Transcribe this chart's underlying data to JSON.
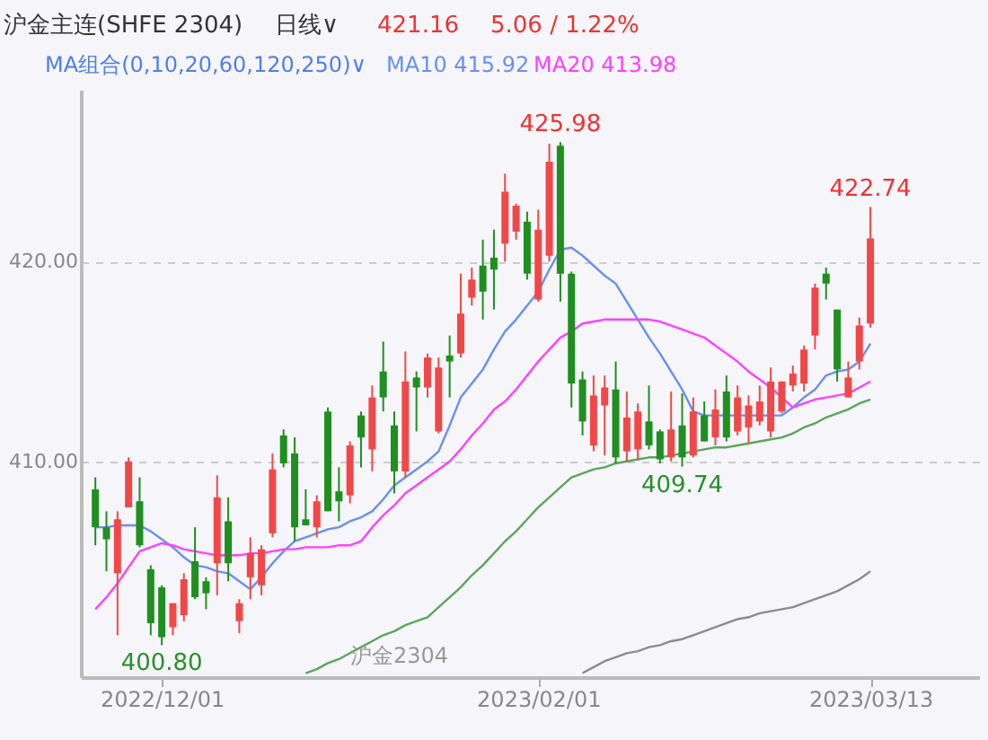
{
  "chart_data": {
    "type": "candlestick",
    "title": "沪金主连(SHFE 2304)",
    "subtitle": "日线∨",
    "categories": [
      null,
      null,
      null,
      null,
      null,
      null,
      "2022/12/01",
      null,
      null,
      null,
      null,
      null,
      null,
      null,
      null,
      null,
      null,
      null,
      null,
      null,
      null,
      null,
      null,
      null,
      null,
      null,
      null,
      null,
      null,
      null,
      null,
      null,
      null,
      null,
      null,
      null,
      null,
      null,
      null,
      null,
      "2023/02/01",
      null,
      null,
      null,
      null,
      null,
      null,
      null,
      null,
      null,
      null,
      null,
      null,
      null,
      null,
      null,
      null,
      null,
      null,
      null,
      null,
      null,
      null,
      null,
      null,
      null,
      null,
      null,
      null,
      null,
      "2023/03/13"
    ],
    "ohlc": [
      [
        408.6,
        409.2,
        405.8,
        406.7
      ],
      [
        406.7,
        407.5,
        404.5,
        406.1
      ],
      [
        404.4,
        407.5,
        401.3,
        407.1
      ],
      [
        407.7,
        410.2,
        407.7,
        410.0
      ],
      [
        408.0,
        409.2,
        405.7,
        405.8
      ],
      [
        404.6,
        404.8,
        401.3,
        401.9
      ],
      [
        403.7,
        403.8,
        400.8,
        401.2
      ],
      [
        401.7,
        402.9,
        401.3,
        402.9
      ],
      [
        402.3,
        404.4,
        402.0,
        404.1
      ],
      [
        405.0,
        406.7,
        403.1,
        403.2
      ],
      [
        404.0,
        404.2,
        402.6,
        403.4
      ],
      [
        404.9,
        409.3,
        403.3,
        408.2
      ],
      [
        407.0,
        408.2,
        404.0,
        404.9
      ],
      [
        402.0,
        403.1,
        401.4,
        402.9
      ],
      [
        404.2,
        406.2,
        403.1,
        405.4
      ],
      [
        403.8,
        405.8,
        403.3,
        405.6
      ],
      [
        406.4,
        410.4,
        406.2,
        409.6
      ],
      [
        411.3,
        411.6,
        409.7,
        409.9
      ],
      [
        410.4,
        411.2,
        406.0,
        406.7
      ],
      [
        407.1,
        408.6,
        406.8,
        406.8
      ],
      [
        406.7,
        408.3,
        406.2,
        408.0
      ],
      [
        412.5,
        412.7,
        407.5,
        407.5
      ],
      [
        408.5,
        409.7,
        407.0,
        408.0
      ],
      [
        408.3,
        411.0,
        407.9,
        410.8
      ],
      [
        412.3,
        412.5,
        409.7,
        411.2
      ],
      [
        410.6,
        413.8,
        409.5,
        413.2
      ],
      [
        414.5,
        416.0,
        412.5,
        413.2
      ],
      [
        411.8,
        412.5,
        408.4,
        409.5
      ],
      [
        409.5,
        415.5,
        409.2,
        414.0
      ],
      [
        414.2,
        414.5,
        411.5,
        413.7
      ],
      [
        413.7,
        415.4,
        413.2,
        415.2
      ],
      [
        411.5,
        415.2,
        411.4,
        414.7
      ],
      [
        415.3,
        416.3,
        413.2,
        415.0
      ],
      [
        415.4,
        419.4,
        415.2,
        417.4
      ],
      [
        418.2,
        419.7,
        417.8,
        419.1
      ],
      [
        419.8,
        421.1,
        417.1,
        418.5
      ],
      [
        420.2,
        421.6,
        417.6,
        419.6
      ],
      [
        420.9,
        424.4,
        420.0,
        423.5
      ],
      [
        421.5,
        422.9,
        421.1,
        422.8
      ],
      [
        422.0,
        422.5,
        419.1,
        419.4
      ],
      [
        418.1,
        422.6,
        418.0,
        421.6
      ],
      [
        420.3,
        425.9,
        420.0,
        425.0
      ],
      [
        425.8,
        425.98,
        418.0,
        419.4
      ],
      [
        419.4,
        419.5,
        412.7,
        413.9
      ],
      [
        414.1,
        414.5,
        411.3,
        412.0
      ],
      [
        410.8,
        414.3,
        410.5,
        413.3
      ],
      [
        412.8,
        414.3,
        410.3,
        413.7
      ],
      [
        413.6,
        415.0,
        409.9,
        410.2
      ],
      [
        410.5,
        413.5,
        410.0,
        412.2
      ],
      [
        410.6,
        412.9,
        410.1,
        412.5
      ],
      [
        412.0,
        413.8,
        410.6,
        410.8
      ],
      [
        411.5,
        411.6,
        409.9,
        410.1
      ],
      [
        410.2,
        413.5,
        410.0,
        411.6
      ],
      [
        411.8,
        413.4,
        409.74,
        410.2
      ],
      [
        410.3,
        413.2,
        410.2,
        412.5
      ],
      [
        412.3,
        413.0,
        411.0,
        411.0
      ],
      [
        411.2,
        413.6,
        410.8,
        412.6
      ],
      [
        413.5,
        414.3,
        411.0,
        411.2
      ],
      [
        411.5,
        413.8,
        411.3,
        413.2
      ],
      [
        411.7,
        413.3,
        410.9,
        412.8
      ],
      [
        412.0,
        413.8,
        411.8,
        413.0
      ],
      [
        411.5,
        414.7,
        411.2,
        414.0
      ],
      [
        412.5,
        414.0,
        412.4,
        414.0
      ],
      [
        413.8,
        414.8,
        413.5,
        414.4
      ],
      [
        413.9,
        415.8,
        413.5,
        415.6
      ],
      [
        416.3,
        418.9,
        415.6,
        418.7
      ],
      [
        419.4,
        419.7,
        418.1,
        418.9
      ],
      [
        417.6,
        417.6,
        414.0,
        414.6
      ],
      [
        413.2,
        415.0,
        413.2,
        414.2
      ],
      [
        415.0,
        417.2,
        414.6,
        416.8
      ],
      [
        416.9,
        422.74,
        416.7,
        421.16
      ]
    ],
    "colors": [
      "#1f8f1f",
      "#1f8f1f",
      "#f04848",
      "#f04848",
      "#1f8f1f",
      "#1f8f1f",
      "#1f8f1f",
      "#f04848",
      "#f04848",
      "#1f8f1f",
      "#1f8f1f",
      "#f04848",
      "#1f8f1f",
      "#f04848",
      "#f04848",
      "#f04848",
      "#f04848",
      "#1f8f1f",
      "#1f8f1f",
      "#1f8f1f",
      "#f04848",
      "#1f8f1f",
      "#1f8f1f",
      "#f04848",
      "#1f8f1f",
      "#f04848",
      "#1f8f1f",
      "#1f8f1f",
      "#f04848",
      "#1f8f1f",
      "#f04848",
      "#f04848",
      "#1f8f1f",
      "#f04848",
      "#f04848",
      "#1f8f1f",
      "#1f8f1f",
      "#f04848",
      "#f04848",
      "#1f8f1f",
      "#f04848",
      "#f04848",
      "#1f8f1f",
      "#1f8f1f",
      "#1f8f1f",
      "#f04848",
      "#f04848",
      "#1f8f1f",
      "#f04848",
      "#f04848",
      "#1f8f1f",
      "#1f8f1f",
      "#f04848",
      "#1f8f1f",
      "#f04848",
      "#1f8f1f",
      "#f04848",
      "#1f8f1f",
      "#f04848",
      "#f04848",
      "#f04848",
      "#f04848",
      "#f04848",
      "#f04848",
      "#f04848",
      "#f04848",
      "#1f8f1f",
      "#1f8f1f",
      "#f04848",
      "#f04848",
      "#f04848"
    ],
    "series": [
      {
        "type": "line",
        "name": "MA10 415.92",
        "color": "#6a8ff0",
        "values": [
          406.7,
          406.7,
          406.8,
          406.8,
          406.8,
          406.5,
          406.1,
          405.7,
          405.2,
          404.8,
          404.7,
          404.5,
          404.4,
          404.0,
          403.6,
          404.2,
          404.9,
          405.5,
          406.0,
          406.2,
          406.4,
          406.6,
          406.7,
          407.0,
          407.2,
          407.5,
          408.1,
          408.8,
          409.2,
          409.6,
          410.0,
          410.5,
          411.8,
          413.2,
          413.9,
          414.6,
          415.6,
          416.5,
          417.1,
          417.8,
          418.5,
          419.6,
          420.6,
          420.7,
          420.3,
          419.8,
          419.3,
          418.9,
          418.0,
          417.1,
          416.2,
          415.4,
          414.5,
          413.6,
          412.5,
          412.3,
          412.3,
          412.3,
          412.3,
          412.3,
          412.3,
          412.3,
          412.3,
          412.7,
          413.2,
          413.6,
          414.3,
          414.5,
          414.6,
          415.0,
          415.9
        ]
      },
      {
        "type": "line",
        "name": "MA20 413.98",
        "color": "#ff40ff",
        "values": [
          402.6,
          403.2,
          403.9,
          404.7,
          405.5,
          405.7,
          405.9,
          405.8,
          405.6,
          405.5,
          405.4,
          405.3,
          405.3,
          405.3,
          405.4,
          405.4,
          405.5,
          405.6,
          405.6,
          405.7,
          405.7,
          405.7,
          405.8,
          405.8,
          406.0,
          406.7,
          407.3,
          407.8,
          408.4,
          408.8,
          409.2,
          409.6,
          410.0,
          410.6,
          411.3,
          411.9,
          412.6,
          413.0,
          413.6,
          414.3,
          415.0,
          415.6,
          416.2,
          416.5,
          416.9,
          417.0,
          417.1,
          417.1,
          417.1,
          417.1,
          417.1,
          417.0,
          416.8,
          416.6,
          416.4,
          416.2,
          415.8,
          415.4,
          415.0,
          414.5,
          414.1,
          413.7,
          413.2,
          412.7,
          412.9,
          413.1,
          413.2,
          413.3,
          413.4,
          413.7,
          414.0
        ]
      },
      {
        "type": "line",
        "color": "#5aa65a",
        "values": [
          null,
          null,
          null,
          null,
          null,
          null,
          null,
          null,
          null,
          null,
          null,
          null,
          null,
          null,
          null,
          null,
          null,
          null,
          null,
          399.4,
          399.6,
          399.9,
          400.1,
          400.4,
          400.7,
          401.0,
          401.3,
          401.5,
          401.8,
          402.0,
          402.2,
          402.7,
          403.2,
          403.7,
          404.3,
          404.8,
          405.4,
          406.0,
          406.5,
          407.1,
          407.7,
          408.2,
          408.7,
          409.2,
          409.4,
          409.6,
          409.7,
          409.9,
          410.0,
          410.1,
          410.2,
          410.2,
          410.3,
          410.4,
          410.5,
          410.6,
          410.7,
          410.7,
          410.8,
          410.9,
          411.0,
          411.1,
          411.2,
          411.4,
          411.7,
          411.9,
          412.2,
          412.4,
          412.6,
          412.9,
          413.1
        ]
      },
      {
        "type": "line",
        "color": "#8c8c8c",
        "values": [
          null,
          null,
          null,
          null,
          null,
          null,
          null,
          null,
          null,
          null,
          null,
          null,
          null,
          null,
          null,
          null,
          null,
          null,
          null,
          null,
          null,
          null,
          null,
          null,
          null,
          null,
          null,
          null,
          null,
          null,
          null,
          null,
          null,
          null,
          null,
          null,
          null,
          null,
          null,
          null,
          null,
          null,
          null,
          null,
          399.4,
          399.7,
          400.0,
          400.2,
          400.4,
          400.5,
          400.7,
          400.8,
          401.0,
          401.1,
          401.3,
          401.5,
          401.7,
          401.9,
          402.1,
          402.2,
          402.4,
          402.5,
          402.6,
          402.7,
          402.9,
          403.1,
          403.3,
          403.5,
          403.8,
          404.1,
          404.5
        ]
      }
    ],
    "ylim": [
      399.2,
      428.6
    ],
    "yticks": [
      {
        "value": 410,
        "label": "410.00"
      },
      {
        "value": 420,
        "label": "420.00"
      }
    ],
    "grid": "y",
    "annotations": [
      "421.16",
      "5.06 / 1.22%",
      "MA组合(0,10,20,60,120,250)∨",
      {
        "text": "425.98",
        "y": 425.98
      },
      {
        "text": "422.74",
        "y": 422.74
      },
      {
        "text": "409.74",
        "y": 409.74
      },
      {
        "text": "400.80",
        "y": 400.8
      },
      "沪金2304"
    ]
  }
}
